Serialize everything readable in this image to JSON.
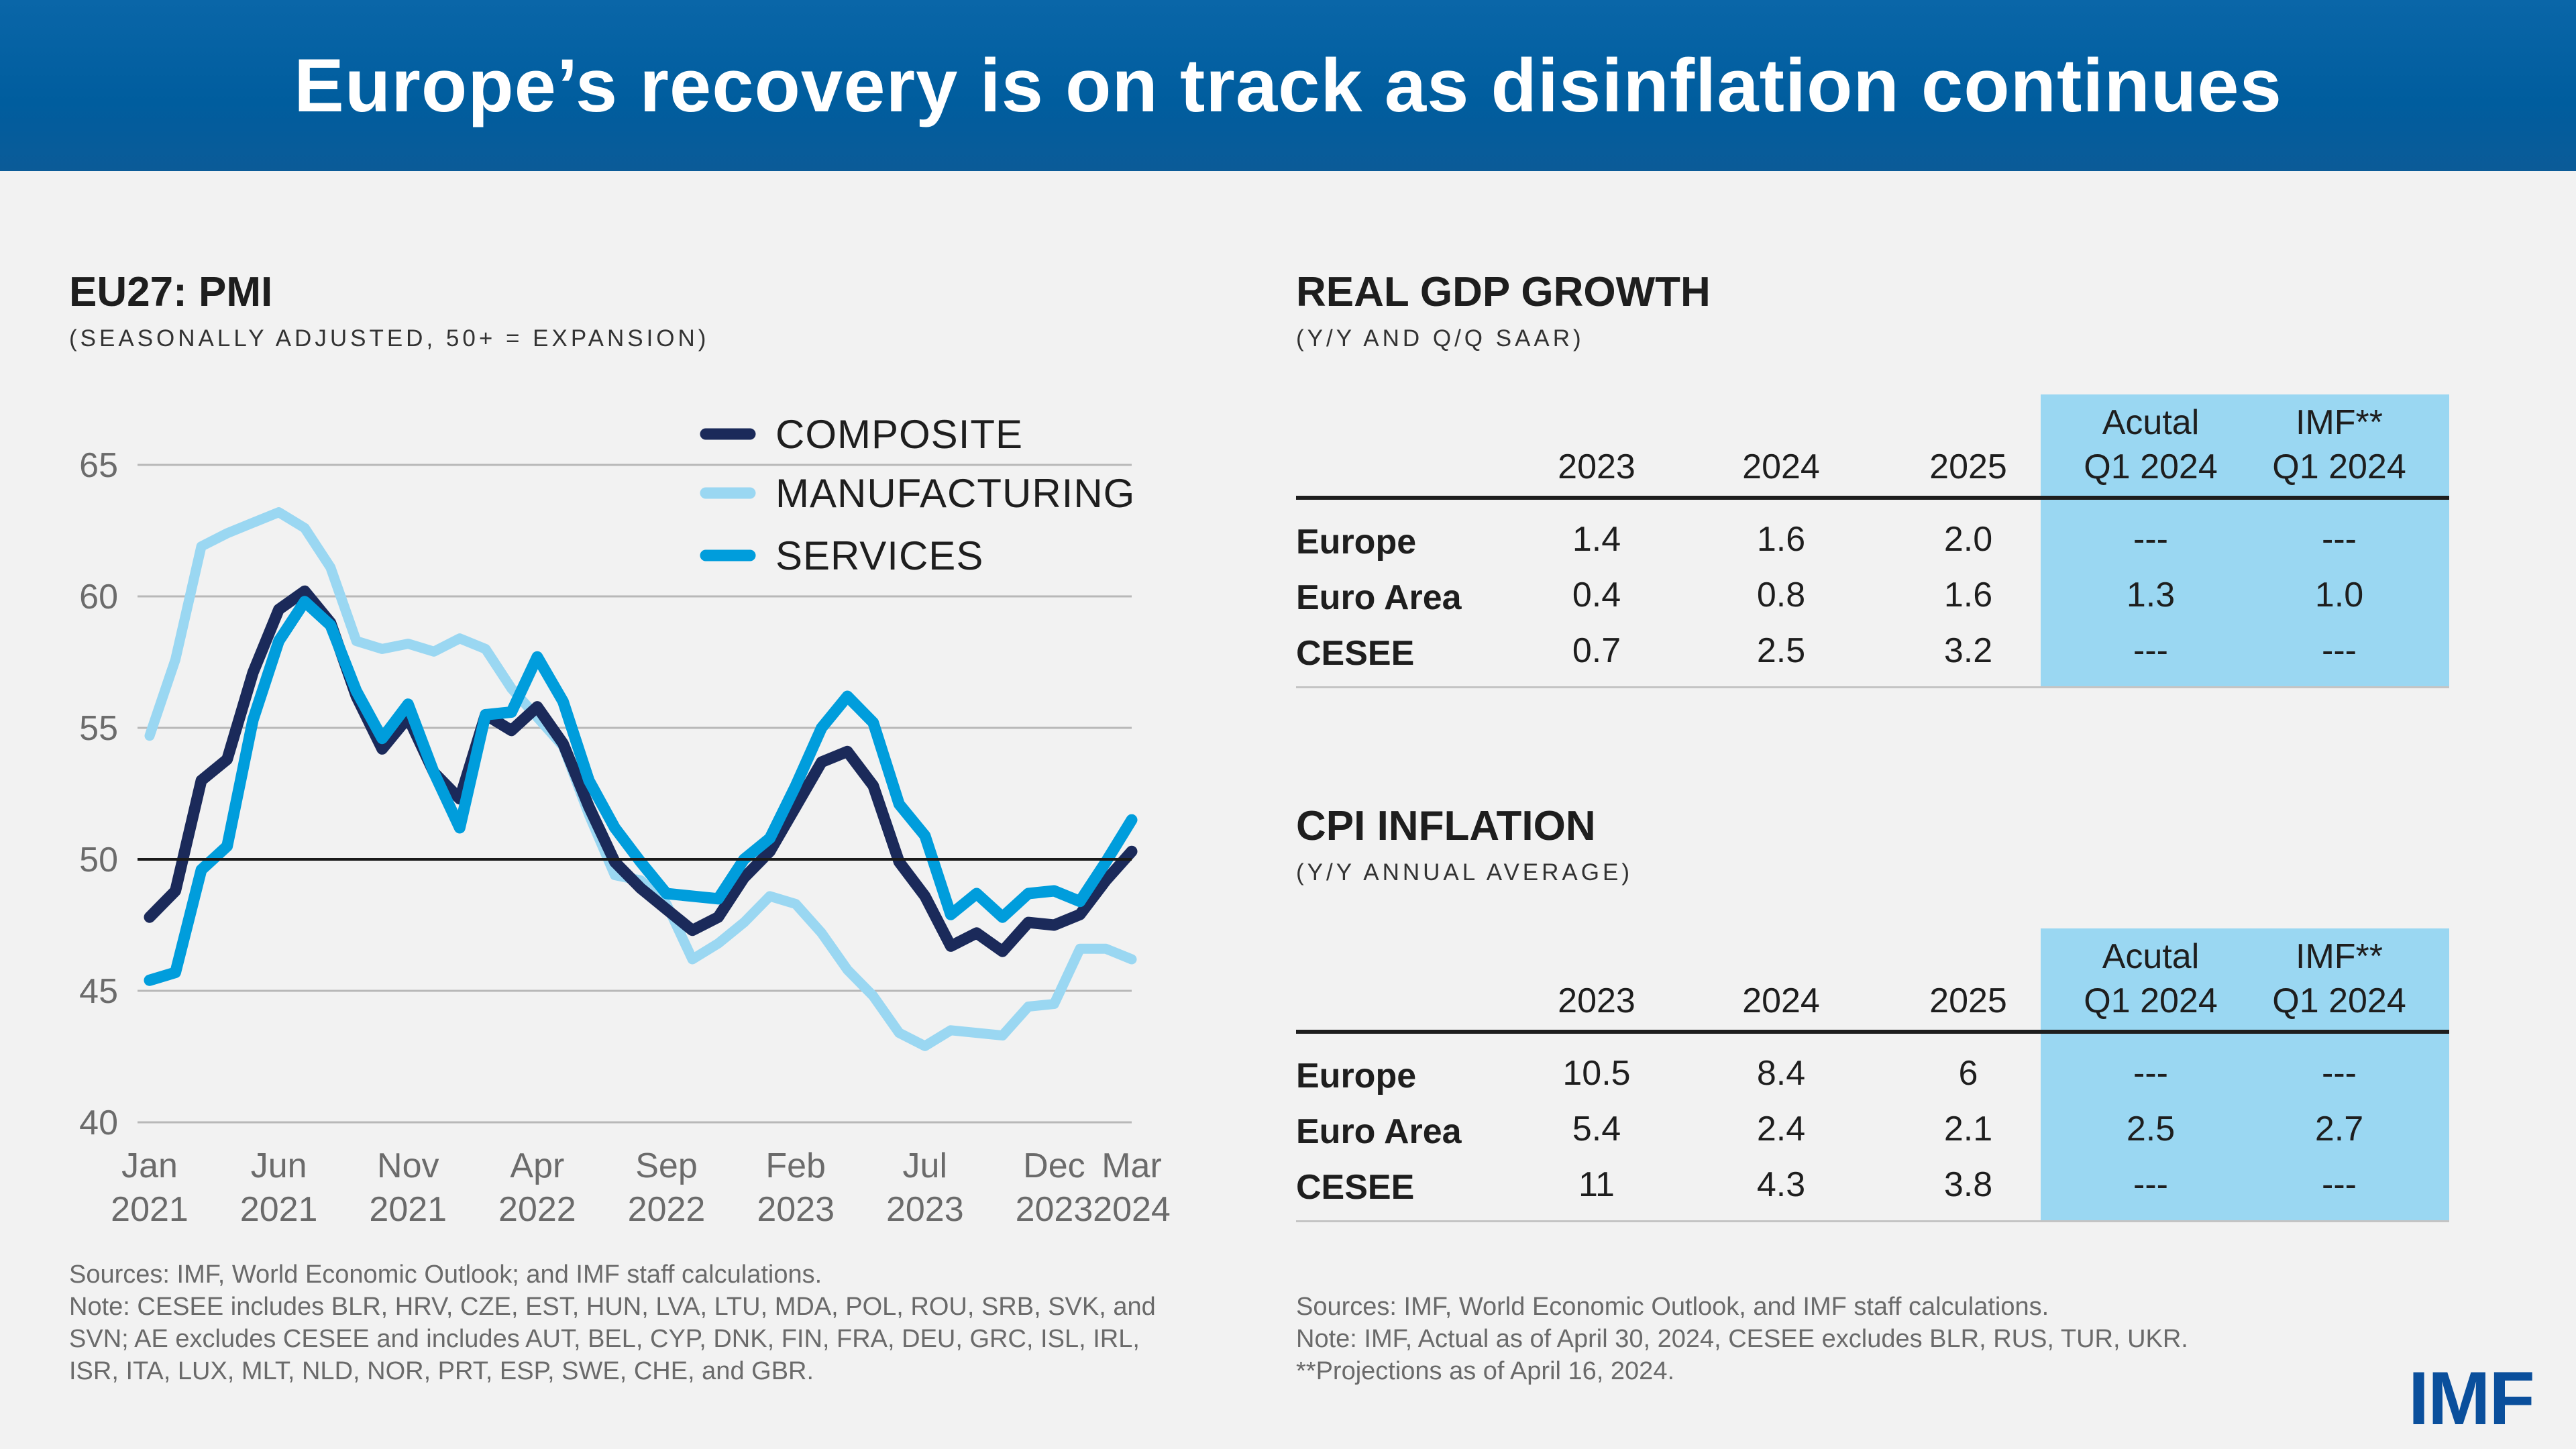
{
  "header": {
    "title": "Europe’s recovery is on track as disinflation continues"
  },
  "left": {
    "title": "EU27: PMI",
    "subtitle": "(SEASONALLY ADJUSTED, 50+ = EXPANSION)",
    "sources": [
      "Sources: IMF, World Economic Outlook; and IMF staff calculations.",
      "Note: CESEE includes BLR, HRV, CZE, EST, HUN, LVA, LTU, MDA, POL, ROU, SRB, SVK, and",
      "SVN; AE excludes CESEE and includes AUT, BEL, CYP, DNK, FIN, FRA, DEU, GRC, ISL, IRL,",
      "ISR, ITA, LUX, MLT, NLD, NOR, PRT, ESP, SWE, CHE, and GBR."
    ]
  },
  "chart_data": {
    "type": "line",
    "title": "EU27: PMI",
    "subtitle": "(SEASONALLY ADJUSTED, 50+ = EXPANSION)",
    "x_start": "Jan 2021",
    "x_end": "Mar 2024",
    "x_frequency": "monthly",
    "x_ticks": [
      {
        "index": 0,
        "line1": "Jan",
        "line2": "2021"
      },
      {
        "index": 5,
        "line1": "Jun",
        "line2": "2021"
      },
      {
        "index": 10,
        "line1": "Nov",
        "line2": "2021"
      },
      {
        "index": 15,
        "line1": "Apr",
        "line2": "2022"
      },
      {
        "index": 20,
        "line1": "Sep",
        "line2": "2022"
      },
      {
        "index": 25,
        "line1": "Feb",
        "line2": "2023"
      },
      {
        "index": 30,
        "line1": "Jul",
        "line2": "2023"
      },
      {
        "index": 35,
        "line1": "Dec",
        "line2": "2023"
      },
      {
        "index": 38,
        "line1": "Mar",
        "line2": "2024"
      }
    ],
    "y_ticks": [
      "40",
      "45",
      "50",
      "55",
      "60",
      "65"
    ],
    "ylim": [
      40,
      65
    ],
    "reference_line": 50,
    "grid": "horizontal",
    "legend_position": "top-right",
    "series": [
      {
        "name": "COMPOSITE",
        "color": "#1b2a5a",
        "values": [
          47.8,
          48.8,
          53.0,
          53.8,
          57.1,
          59.5,
          60.2,
          59.0,
          56.2,
          54.2,
          55.4,
          53.3,
          52.3,
          55.5,
          54.9,
          55.8,
          54.4,
          52.0,
          49.9,
          48.9,
          48.1,
          47.3,
          47.8,
          49.3,
          50.3,
          52.0,
          53.7,
          54.1,
          52.8,
          49.9,
          48.6,
          46.7,
          47.2,
          46.5,
          47.6,
          47.5,
          47.9,
          49.2,
          50.3
        ]
      },
      {
        "name": "MANUFACTURING",
        "color": "#9ad7f2",
        "values": [
          54.7,
          57.6,
          61.9,
          62.4,
          62.8,
          63.2,
          62.6,
          61.1,
          58.3,
          58.0,
          58.2,
          57.9,
          58.4,
          58.0,
          56.5,
          55.4,
          54.3,
          51.7,
          49.4,
          49.2,
          48.3,
          46.2,
          46.8,
          47.6,
          48.6,
          48.3,
          47.2,
          45.8,
          44.8,
          43.4,
          42.9,
          43.5,
          43.4,
          43.3,
          44.4,
          44.5,
          46.6,
          46.6,
          46.2
        ]
      },
      {
        "name": "SERVICES",
        "color": "#009ddc",
        "values": [
          45.4,
          45.7,
          49.6,
          50.5,
          55.3,
          58.3,
          59.8,
          58.9,
          56.4,
          54.6,
          55.9,
          53.3,
          51.2,
          55.5,
          55.6,
          57.7,
          56.0,
          53.0,
          51.2,
          49.9,
          48.7,
          48.6,
          48.5,
          50.0,
          50.8,
          52.8,
          55.0,
          56.2,
          55.2,
          52.1,
          50.9,
          47.9,
          48.7,
          47.8,
          48.7,
          48.8,
          48.4,
          49.9,
          51.5
        ]
      }
    ]
  },
  "gdp": {
    "title": "REAL GDP GROWTH",
    "subtitle": "(Y/Y AND Q/Q SAAR)",
    "columns": [
      "2023",
      "2024",
      "2025"
    ],
    "highlight_columns": [
      {
        "line1": "Acutal",
        "line2": "Q1 2024"
      },
      {
        "line1": "IMF**",
        "line2": "Q1 2024"
      }
    ],
    "rows": [
      {
        "label": "Europe",
        "values": [
          "1.4",
          "1.6",
          "2.0",
          "---",
          "---"
        ]
      },
      {
        "label": "Euro Area",
        "values": [
          "0.4",
          "0.8",
          "1.6",
          "1.3",
          "1.0"
        ]
      },
      {
        "label": "CESEE",
        "values": [
          "0.7",
          "2.5",
          "3.2",
          "---",
          "---"
        ]
      }
    ]
  },
  "cpi": {
    "title": "CPI INFLATION",
    "subtitle": "(Y/Y ANNUAL AVERAGE)",
    "columns": [
      "2023",
      "2024",
      "2025"
    ],
    "highlight_columns": [
      {
        "line1": "Acutal",
        "line2": "Q1 2024"
      },
      {
        "line1": "IMF**",
        "line2": "Q1 2024"
      }
    ],
    "rows": [
      {
        "label": "Europe",
        "values": [
          "10.5",
          "8.4",
          "6",
          "---",
          "---"
        ]
      },
      {
        "label": "Euro Area",
        "values": [
          "5.4",
          "2.4",
          "2.1",
          "2.5",
          "2.7"
        ]
      },
      {
        "label": "CESEE",
        "values": [
          "11",
          "4.3",
          "3.8",
          "---",
          "---"
        ]
      }
    ]
  },
  "right_sources": [
    "Sources: IMF, World Economic Outlook, and IMF staff calculations.",
    "Note: IMF, Actual as of April 30, 2024, CESEE excludes BLR, RUS, TUR, UKR.",
    "**Projections as of April 16, 2024."
  ],
  "logo": {
    "text": "IMF",
    "color": "#0a4f9c"
  },
  "colors": {
    "header": "#005d9e",
    "highlight": "#9ad7f2",
    "background": "#f2f2f2"
  }
}
